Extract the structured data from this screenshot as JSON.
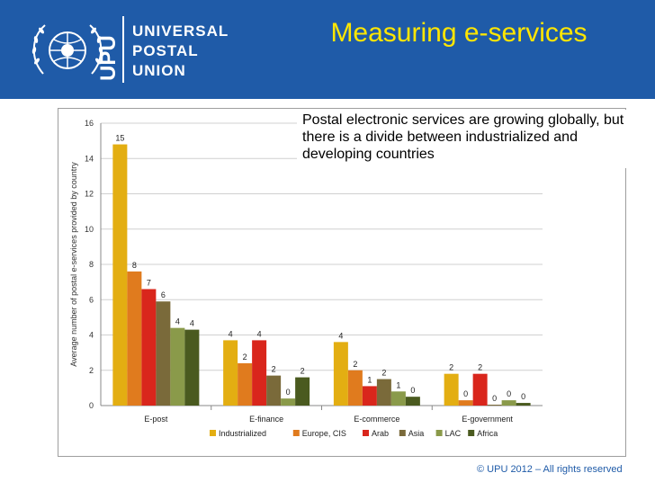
{
  "header": {
    "logo_text": "UPU",
    "org_lines": [
      "UNIVERSAL",
      "POSTAL",
      "UNION"
    ],
    "title": "Measuring e-services",
    "bg_color": "#1f5ba8",
    "title_color": "#ffe600"
  },
  "subtitle": "Postal electronic services are growing globally, but there is a divide between industrialized and developing countries",
  "footer": "© UPU 2012 – All rights reserved",
  "chart_data": {
    "type": "bar",
    "categories": [
      "E-post",
      "E-finance",
      "E-commerce",
      "E-government"
    ],
    "ylabel": "Average number of postal e-services provided by country",
    "ylim": [
      0,
      16
    ],
    "yticks": [
      0,
      2,
      4,
      6,
      8,
      10,
      12,
      14,
      16
    ],
    "grid": true,
    "legend_position": "bottom",
    "series": [
      {
        "name": "Industrialized",
        "color": "#e3ae12",
        "values": [
          14.8,
          3.7,
          3.6,
          1.8
        ],
        "labels": [
          "15",
          "4",
          "4",
          "2"
        ]
      },
      {
        "name": "Europe, CIS",
        "color": "#e07b1e",
        "values": [
          7.6,
          2.4,
          2.0,
          0.3
        ],
        "labels": [
          "8",
          "2",
          "2",
          "0"
        ]
      },
      {
        "name": "Arab",
        "color": "#d9261c",
        "values": [
          6.6,
          3.7,
          1.1,
          1.8
        ],
        "labels": [
          "7",
          "4",
          "1",
          "2"
        ]
      },
      {
        "name": "Asia",
        "color": "#7a6a3a",
        "values": [
          5.9,
          1.7,
          1.5,
          0.05
        ],
        "labels": [
          "6",
          "2",
          "2",
          "0"
        ]
      },
      {
        "name": "LAC",
        "color": "#8a9a4a",
        "values": [
          4.4,
          0.4,
          0.8,
          0.3
        ],
        "labels": [
          "4",
          "0",
          "1",
          "0"
        ]
      },
      {
        "name": "Africa",
        "color": "#4a5a1f",
        "values": [
          4.3,
          1.6,
          0.5,
          0.15
        ],
        "labels": [
          "4",
          "2",
          "0",
          "0"
        ]
      }
    ]
  }
}
